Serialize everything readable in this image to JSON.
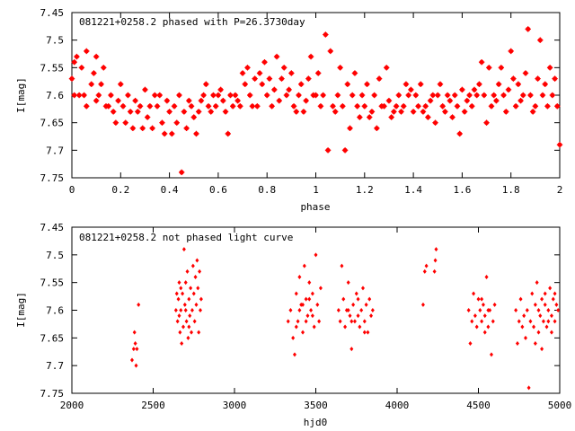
{
  "chart_data": [
    {
      "type": "scatter",
      "title": "081221+0258.2 phased with P=26.3730day",
      "xlabel": "phase",
      "ylabel": "I[mag]",
      "xlim": [
        0,
        2
      ],
      "ylim": [
        7.45,
        7.75
      ],
      "y_inverted": true,
      "xticks": [
        "0",
        "0.2",
        "0.4",
        "0.6",
        "0.8",
        "1",
        "1.2",
        "1.4",
        "1.6",
        "1.8",
        "2"
      ],
      "yticks": [
        "7.45",
        "7.5",
        "7.55",
        "7.6",
        "7.65",
        "7.7",
        "7.75"
      ],
      "grid": false,
      "marker": "star",
      "color": "#ff0000",
      "points": [
        [
          0.0,
          7.57
        ],
        [
          0.01,
          7.6
        ],
        [
          0.01,
          7.54
        ],
        [
          0.02,
          7.53
        ],
        [
          0.03,
          7.6
        ],
        [
          0.04,
          7.55
        ],
        [
          0.05,
          7.6
        ],
        [
          0.06,
          7.62
        ],
        [
          0.06,
          7.52
        ],
        [
          0.08,
          7.58
        ],
        [
          0.09,
          7.56
        ],
        [
          0.1,
          7.53
        ],
        [
          0.1,
          7.61
        ],
        [
          0.11,
          7.6
        ],
        [
          0.12,
          7.58
        ],
        [
          0.13,
          7.55
        ],
        [
          0.14,
          7.62
        ],
        [
          0.15,
          7.62
        ],
        [
          0.16,
          7.6
        ],
        [
          0.17,
          7.63
        ],
        [
          0.18,
          7.65
        ],
        [
          0.19,
          7.61
        ],
        [
          0.2,
          7.58
        ],
        [
          0.21,
          7.62
        ],
        [
          0.22,
          7.65
        ],
        [
          0.23,
          7.6
        ],
        [
          0.24,
          7.63
        ],
        [
          0.25,
          7.66
        ],
        [
          0.26,
          7.61
        ],
        [
          0.27,
          7.63
        ],
        [
          0.28,
          7.62
        ],
        [
          0.29,
          7.66
        ],
        [
          0.3,
          7.59
        ],
        [
          0.31,
          7.64
        ],
        [
          0.32,
          7.62
        ],
        [
          0.33,
          7.66
        ],
        [
          0.34,
          7.6
        ],
        [
          0.35,
          7.62
        ],
        [
          0.36,
          7.6
        ],
        [
          0.37,
          7.65
        ],
        [
          0.38,
          7.67
        ],
        [
          0.39,
          7.61
        ],
        [
          0.4,
          7.63
        ],
        [
          0.41,
          7.67
        ],
        [
          0.42,
          7.62
        ],
        [
          0.43,
          7.65
        ],
        [
          0.44,
          7.6
        ],
        [
          0.45,
          7.74
        ],
        [
          0.46,
          7.63
        ],
        [
          0.47,
          7.66
        ],
        [
          0.48,
          7.61
        ],
        [
          0.49,
          7.62
        ],
        [
          0.5,
          7.64
        ],
        [
          0.51,
          7.67
        ],
        [
          0.52,
          7.63
        ],
        [
          0.53,
          7.61
        ],
        [
          0.54,
          7.6
        ],
        [
          0.55,
          7.58
        ],
        [
          0.56,
          7.62
        ],
        [
          0.57,
          7.63
        ],
        [
          0.58,
          7.6
        ],
        [
          0.59,
          7.62
        ],
        [
          0.6,
          7.6
        ],
        [
          0.61,
          7.59
        ],
        [
          0.62,
          7.61
        ],
        [
          0.63,
          7.63
        ],
        [
          0.64,
          7.67
        ],
        [
          0.65,
          7.6
        ],
        [
          0.66,
          7.62
        ],
        [
          0.67,
          7.6
        ],
        [
          0.68,
          7.61
        ],
        [
          0.69,
          7.62
        ],
        [
          0.7,
          7.56
        ],
        [
          0.71,
          7.58
        ],
        [
          0.72,
          7.55
        ],
        [
          0.73,
          7.6
        ],
        [
          0.74,
          7.62
        ],
        [
          0.75,
          7.57
        ],
        [
          0.76,
          7.62
        ],
        [
          0.77,
          7.56
        ],
        [
          0.78,
          7.58
        ],
        [
          0.79,
          7.54
        ],
        [
          0.8,
          7.6
        ],
        [
          0.81,
          7.57
        ],
        [
          0.82,
          7.62
        ],
        [
          0.83,
          7.59
        ],
        [
          0.84,
          7.53
        ],
        [
          0.85,
          7.61
        ],
        [
          0.86,
          7.57
        ],
        [
          0.87,
          7.55
        ],
        [
          0.88,
          7.6
        ],
        [
          0.89,
          7.59
        ],
        [
          0.9,
          7.56
        ],
        [
          0.91,
          7.62
        ],
        [
          0.92,
          7.63
        ],
        [
          0.93,
          7.6
        ],
        [
          0.94,
          7.58
        ],
        [
          0.95,
          7.63
        ],
        [
          0.96,
          7.61
        ],
        [
          0.97,
          7.57
        ],
        [
          0.98,
          7.53
        ],
        [
          0.99,
          7.6
        ],
        [
          1.0,
          7.6
        ],
        [
          1.01,
          7.56
        ],
        [
          1.02,
          7.62
        ],
        [
          1.03,
          7.6
        ],
        [
          1.04,
          7.49
        ],
        [
          1.05,
          7.7
        ],
        [
          1.06,
          7.52
        ],
        [
          1.07,
          7.62
        ],
        [
          1.08,
          7.63
        ],
        [
          1.09,
          7.6
        ],
        [
          1.1,
          7.55
        ],
        [
          1.11,
          7.62
        ],
        [
          1.12,
          7.7
        ],
        [
          1.13,
          7.58
        ],
        [
          1.14,
          7.66
        ],
        [
          1.15,
          7.6
        ],
        [
          1.16,
          7.56
        ],
        [
          1.17,
          7.62
        ],
        [
          1.18,
          7.64
        ],
        [
          1.19,
          7.6
        ],
        [
          1.2,
          7.62
        ],
        [
          1.21,
          7.58
        ],
        [
          1.22,
          7.64
        ],
        [
          1.23,
          7.63
        ],
        [
          1.24,
          7.6
        ],
        [
          1.25,
          7.66
        ],
        [
          1.26,
          7.57
        ],
        [
          1.27,
          7.62
        ],
        [
          1.28,
          7.62
        ],
        [
          1.29,
          7.55
        ],
        [
          1.3,
          7.61
        ],
        [
          1.31,
          7.64
        ],
        [
          1.32,
          7.63
        ],
        [
          1.33,
          7.62
        ],
        [
          1.34,
          7.6
        ],
        [
          1.35,
          7.63
        ],
        [
          1.36,
          7.62
        ],
        [
          1.37,
          7.58
        ],
        [
          1.38,
          7.6
        ],
        [
          1.39,
          7.59
        ],
        [
          1.4,
          7.63
        ],
        [
          1.41,
          7.6
        ],
        [
          1.42,
          7.62
        ],
        [
          1.43,
          7.58
        ],
        [
          1.44,
          7.63
        ],
        [
          1.45,
          7.62
        ],
        [
          1.46,
          7.64
        ],
        [
          1.47,
          7.61
        ],
        [
          1.48,
          7.6
        ],
        [
          1.49,
          7.65
        ],
        [
          1.5,
          7.6
        ],
        [
          1.51,
          7.58
        ],
        [
          1.52,
          7.62
        ],
        [
          1.53,
          7.63
        ],
        [
          1.54,
          7.6
        ],
        [
          1.55,
          7.61
        ],
        [
          1.56,
          7.64
        ],
        [
          1.57,
          7.6
        ],
        [
          1.58,
          7.62
        ],
        [
          1.59,
          7.67
        ],
        [
          1.6,
          7.59
        ],
        [
          1.61,
          7.63
        ],
        [
          1.62,
          7.61
        ],
        [
          1.63,
          7.6
        ],
        [
          1.64,
          7.62
        ],
        [
          1.65,
          7.59
        ],
        [
          1.66,
          7.6
        ],
        [
          1.67,
          7.58
        ],
        [
          1.68,
          7.54
        ],
        [
          1.69,
          7.6
        ],
        [
          1.7,
          7.65
        ],
        [
          1.71,
          7.55
        ],
        [
          1.72,
          7.62
        ],
        [
          1.73,
          7.6
        ],
        [
          1.74,
          7.61
        ],
        [
          1.75,
          7.58
        ],
        [
          1.76,
          7.55
        ],
        [
          1.77,
          7.6
        ],
        [
          1.78,
          7.63
        ],
        [
          1.79,
          7.59
        ],
        [
          1.8,
          7.52
        ],
        [
          1.81,
          7.57
        ],
        [
          1.82,
          7.62
        ],
        [
          1.83,
          7.58
        ],
        [
          1.84,
          7.61
        ],
        [
          1.85,
          7.6
        ],
        [
          1.86,
          7.56
        ],
        [
          1.87,
          7.48
        ],
        [
          1.88,
          7.6
        ],
        [
          1.89,
          7.63
        ],
        [
          1.9,
          7.62
        ],
        [
          1.91,
          7.57
        ],
        [
          1.92,
          7.5
        ],
        [
          1.93,
          7.6
        ],
        [
          1.94,
          7.58
        ],
        [
          1.95,
          7.62
        ],
        [
          1.96,
          7.55
        ],
        [
          1.97,
          7.6
        ],
        [
          1.98,
          7.57
        ],
        [
          1.99,
          7.62
        ],
        [
          2.0,
          7.69
        ]
      ]
    },
    {
      "type": "scatter",
      "title": "081221+0258.2 not phased light curve",
      "xlabel": "hjd0",
      "ylabel": "I[mag]",
      "xlim": [
        2000,
        5000
      ],
      "ylim": [
        7.45,
        7.75
      ],
      "y_inverted": true,
      "xticks": [
        "2000",
        "2500",
        "3000",
        "3500",
        "4000",
        "4500",
        "5000"
      ],
      "yticks": [
        "7.45",
        "7.5",
        "7.55",
        "7.6",
        "7.65",
        "7.7",
        "7.75"
      ],
      "grid": false,
      "marker": "diamond",
      "color": "#ff0000",
      "points": [
        [
          2370,
          7.69
        ],
        [
          2380,
          7.67
        ],
        [
          2385,
          7.64
        ],
        [
          2390,
          7.66
        ],
        [
          2395,
          7.7
        ],
        [
          2400,
          7.67
        ],
        [
          2410,
          7.59
        ],
        [
          2640,
          7.6
        ],
        [
          2645,
          7.57
        ],
        [
          2650,
          7.62
        ],
        [
          2655,
          7.58
        ],
        [
          2660,
          7.55
        ],
        [
          2665,
          7.64
        ],
        [
          2670,
          7.6
        ],
        [
          2675,
          7.66
        ],
        [
          2680,
          7.57
        ],
        [
          2685,
          7.63
        ],
        [
          2690,
          7.49
        ],
        [
          2695,
          7.59
        ],
        [
          2700,
          7.55
        ],
        [
          2705,
          7.62
        ],
        [
          2710,
          7.53
        ],
        [
          2715,
          7.65
        ],
        [
          2720,
          7.58
        ],
        [
          2725,
          7.61
        ],
        [
          2730,
          7.56
        ],
        [
          2735,
          7.64
        ],
        [
          2740,
          7.6
        ],
        [
          2745,
          7.52
        ],
        [
          2750,
          7.57
        ],
        [
          2755,
          7.62
        ],
        [
          2760,
          7.54
        ],
        [
          2765,
          7.59
        ],
        [
          2770,
          7.51
        ],
        [
          2775,
          7.56
        ],
        [
          2780,
          7.64
        ],
        [
          2785,
          7.53
        ],
        [
          2790,
          7.6
        ],
        [
          2795,
          7.58
        ],
        [
          2660,
          7.61
        ],
        [
          2670,
          7.56
        ],
        [
          2700,
          7.6
        ],
        [
          2720,
          7.63
        ],
        [
          3330,
          7.62
        ],
        [
          3345,
          7.6
        ],
        [
          3360,
          7.65
        ],
        [
          3370,
          7.68
        ],
        [
          3380,
          7.57
        ],
        [
          3390,
          7.62
        ],
        [
          3400,
          7.54
        ],
        [
          3410,
          7.59
        ],
        [
          3420,
          7.64
        ],
        [
          3430,
          7.52
        ],
        [
          3440,
          7.58
        ],
        [
          3450,
          7.61
        ],
        [
          3460,
          7.55
        ],
        [
          3470,
          7.6
        ],
        [
          3480,
          7.57
        ],
        [
          3490,
          7.63
        ],
        [
          3500,
          7.5
        ],
        [
          3510,
          7.59
        ],
        [
          3520,
          7.62
        ],
        [
          3530,
          7.56
        ],
        [
          3420,
          7.59
        ],
        [
          3440,
          7.62
        ],
        [
          3460,
          7.58
        ],
        [
          3480,
          7.61
        ],
        [
          3400,
          7.6
        ],
        [
          3380,
          7.63
        ],
        [
          3640,
          7.6
        ],
        [
          3650,
          7.62
        ],
        [
          3660,
          7.52
        ],
        [
          3670,
          7.58
        ],
        [
          3680,
          7.63
        ],
        [
          3690,
          7.6
        ],
        [
          3700,
          7.55
        ],
        [
          3710,
          7.61
        ],
        [
          3720,
          7.67
        ],
        [
          3730,
          7.59
        ],
        [
          3740,
          7.62
        ],
        [
          3750,
          7.57
        ],
        [
          3760,
          7.61
        ],
        [
          3770,
          7.63
        ],
        [
          3780,
          7.6
        ],
        [
          3790,
          7.56
        ],
        [
          3800,
          7.62
        ],
        [
          3810,
          7.59
        ],
        [
          3820,
          7.64
        ],
        [
          3830,
          7.58
        ],
        [
          3840,
          7.61
        ],
        [
          3850,
          7.6
        ],
        [
          3700,
          7.6
        ],
        [
          3720,
          7.62
        ],
        [
          3760,
          7.58
        ],
        [
          3800,
          7.64
        ],
        [
          4160,
          7.59
        ],
        [
          4170,
          7.53
        ],
        [
          4180,
          7.52
        ],
        [
          4230,
          7.53
        ],
        [
          4235,
          7.51
        ],
        [
          4240,
          7.49
        ],
        [
          4440,
          7.6
        ],
        [
          4450,
          7.66
        ],
        [
          4460,
          7.62
        ],
        [
          4470,
          7.57
        ],
        [
          4480,
          7.61
        ],
        [
          4490,
          7.63
        ],
        [
          4500,
          7.58
        ],
        [
          4510,
          7.6
        ],
        [
          4520,
          7.62
        ],
        [
          4530,
          7.59
        ],
        [
          4540,
          7.61
        ],
        [
          4550,
          7.54
        ],
        [
          4560,
          7.63
        ],
        [
          4570,
          7.6
        ],
        [
          4580,
          7.68
        ],
        [
          4590,
          7.62
        ],
        [
          4600,
          7.59
        ],
        [
          4520,
          7.58
        ],
        [
          4540,
          7.64
        ],
        [
          4560,
          7.6
        ],
        [
          4730,
          7.6
        ],
        [
          4740,
          7.66
        ],
        [
          4750,
          7.62
        ],
        [
          4760,
          7.58
        ],
        [
          4770,
          7.63
        ],
        [
          4780,
          7.61
        ],
        [
          4790,
          7.65
        ],
        [
          4800,
          7.6
        ],
        [
          4810,
          7.74
        ],
        [
          4820,
          7.62
        ],
        [
          4830,
          7.57
        ],
        [
          4840,
          7.63
        ],
        [
          4850,
          7.59
        ],
        [
          4860,
          7.55
        ],
        [
          4870,
          7.64
        ],
        [
          4880,
          7.61
        ],
        [
          4890,
          7.58
        ],
        [
          4900,
          7.62
        ],
        [
          4910,
          7.57
        ],
        [
          4920,
          7.63
        ],
        [
          4930,
          7.6
        ],
        [
          4940,
          7.56
        ],
        [
          4950,
          7.61
        ],
        [
          4960,
          7.58
        ],
        [
          4970,
          7.62
        ],
        [
          4980,
          7.59
        ],
        [
          4990,
          7.6
        ],
        [
          4850,
          7.66
        ],
        [
          4870,
          7.6
        ],
        [
          4890,
          7.67
        ],
        [
          4910,
          7.59
        ],
        [
          4930,
          7.62
        ],
        [
          4950,
          7.64
        ],
        [
          4970,
          7.57
        ]
      ]
    }
  ]
}
